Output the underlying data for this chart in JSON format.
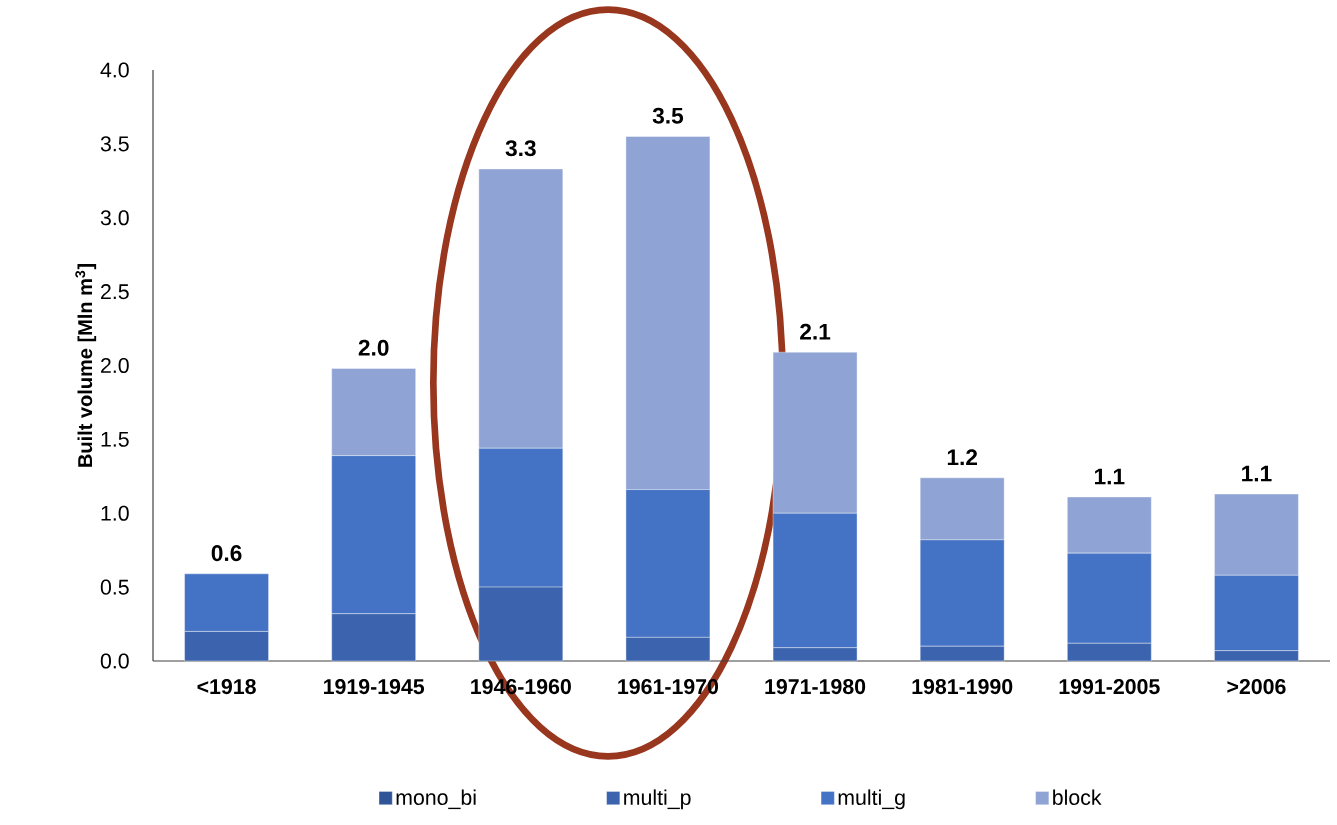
{
  "chart_data": {
    "type": "bar",
    "stacked": true,
    "ylabel": "Built volume [Mln m$^{3}$]",
    "categories": [
      "<1918",
      "1919-1945",
      "1946-1960",
      "1961-1970",
      "1971-1980",
      "1981-1990",
      "1991-2005",
      ">2006"
    ],
    "series": [
      {
        "name": "mono_bi",
        "color": "#2f5597",
        "values": [
          0,
          0,
          0,
          0,
          0,
          0,
          0,
          0
        ]
      },
      {
        "name": "multi_p",
        "color": "#3c64ae",
        "values": [
          0.2,
          0.32,
          0.5,
          0.16,
          0.09,
          0.1,
          0.12,
          0.07
        ]
      },
      {
        "name": "multi_g",
        "color": "#4472c4",
        "values": [
          0.39,
          1.07,
          0.94,
          1.0,
          0.91,
          0.72,
          0.61,
          0.51
        ]
      },
      {
        "name": "block",
        "color": "#8fa4d4",
        "values": [
          0,
          0.59,
          1.89,
          2.39,
          1.09,
          0.42,
          0.38,
          0.55
        ]
      }
    ],
    "totals": [
      "0.6",
      "2.0",
      "3.3",
      "3.5",
      "2.1",
      "1.2",
      "1.1",
      "1.1"
    ],
    "ylim": [
      0,
      4
    ],
    "yticks": [
      {
        "value": 0,
        "label": "0.0"
      },
      {
        "value": 0.5,
        "label": "0.5"
      },
      {
        "value": 1,
        "label": "1.0"
      },
      {
        "value": 1.5,
        "label": "1.5"
      },
      {
        "value": 2,
        "label": "2.0"
      },
      {
        "value": 2.5,
        "label": "2.5"
      },
      {
        "value": 3,
        "label": "3.0"
      },
      {
        "value": 3.5,
        "label": "3.5"
      },
      {
        "value": 4,
        "label": "4.0"
      }
    ],
    "legend": "bottom"
  }
}
